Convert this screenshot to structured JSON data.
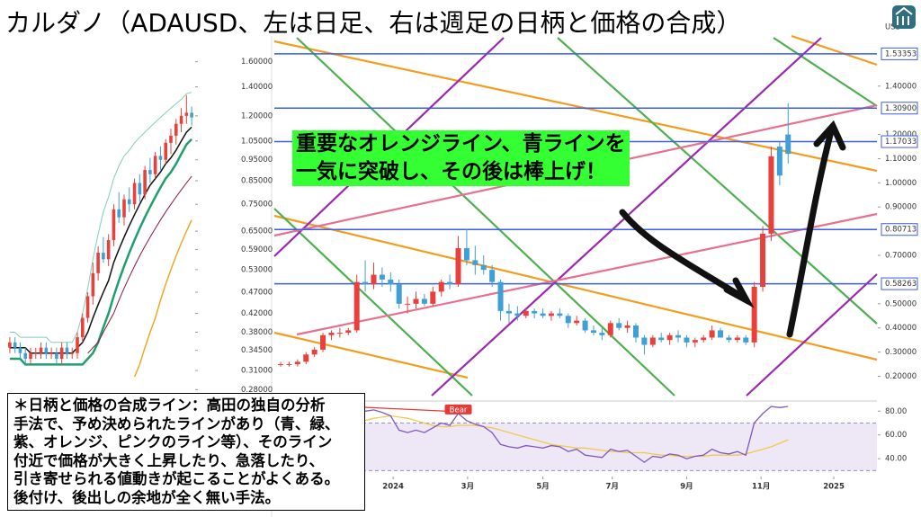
{
  "title": "カルダノ（ADAUSD、左は日足、右は週足の日柄と価格の合成）",
  "callout": [
    "重要なオレンジライン、青ラインを",
    "一気に突破し、その後は棒上げ！"
  ],
  "note": [
    "＊日柄と価格の合成ライン：高田の独自の分析",
    "手法で、予め決められたラインがあり（青、緑、",
    "紫、オレンジ、ピンクのライン等）、そのライン",
    "付近で価格が大きく上昇したり、急落したり、",
    "引き寄せられる値動きが起こることがよくある。",
    "後付け、後出しの余地が全く無い手法。"
  ],
  "chart_data": [
    {
      "type": "candlestick",
      "log_y": true,
      "up_color": "#e8413b",
      "down_color": "#3f9fd6",
      "xlim": [
        -0.5,
        35.5
      ],
      "ylim": [
        0.27,
        1.8
      ],
      "yticks": [
        {
          "value": 1.6,
          "label": "1.60000"
        },
        {
          "value": 1.4,
          "label": "1.40000"
        },
        {
          "value": 1.2,
          "label": "1.20000"
        },
        {
          "value": 1.05,
          "label": "1.05000"
        },
        {
          "value": 0.95,
          "label": "0.95000"
        },
        {
          "value": 0.85,
          "label": "0.85000"
        },
        {
          "value": 0.75,
          "label": "0.75000"
        },
        {
          "value": 0.65,
          "label": "0.65000"
        },
        {
          "value": 0.59,
          "label": "0.59000"
        },
        {
          "value": 0.53,
          "label": "0.53000"
        },
        {
          "value": 0.47,
          "label": "0.47000"
        },
        {
          "value": 0.42,
          "label": "0.42000"
        },
        {
          "value": 0.38,
          "label": "0.38000"
        },
        {
          "value": 0.345,
          "label": "0.34500"
        },
        {
          "value": 0.31,
          "label": "0.31000"
        },
        {
          "value": 0.28,
          "label": "0.28000"
        }
      ],
      "ohlc": [
        [
          0.35,
          0.37,
          0.34,
          0.36
        ],
        [
          0.36,
          0.37,
          0.34,
          0.35
        ],
        [
          0.35,
          0.36,
          0.33,
          0.34
        ],
        [
          0.34,
          0.35,
          0.32,
          0.33
        ],
        [
          0.33,
          0.35,
          0.32,
          0.34
        ],
        [
          0.34,
          0.35,
          0.33,
          0.34
        ],
        [
          0.34,
          0.36,
          0.33,
          0.35
        ],
        [
          0.35,
          0.36,
          0.33,
          0.34
        ],
        [
          0.34,
          0.35,
          0.33,
          0.34
        ],
        [
          0.34,
          0.35,
          0.32,
          0.33
        ],
        [
          0.33,
          0.36,
          0.32,
          0.35
        ],
        [
          0.35,
          0.36,
          0.33,
          0.34
        ],
        [
          0.34,
          0.35,
          0.33,
          0.34
        ],
        [
          0.34,
          0.38,
          0.33,
          0.37
        ],
        [
          0.37,
          0.42,
          0.36,
          0.41
        ],
        [
          0.41,
          0.47,
          0.4,
          0.46
        ],
        [
          0.46,
          0.55,
          0.44,
          0.52
        ],
        [
          0.52,
          0.6,
          0.5,
          0.58
        ],
        [
          0.58,
          0.63,
          0.55,
          0.56
        ],
        [
          0.56,
          0.64,
          0.54,
          0.62
        ],
        [
          0.62,
          0.75,
          0.6,
          0.73
        ],
        [
          0.73,
          0.8,
          0.68,
          0.7
        ],
        [
          0.7,
          0.79,
          0.67,
          0.77
        ],
        [
          0.77,
          0.82,
          0.72,
          0.75
        ],
        [
          0.75,
          0.86,
          0.73,
          0.84
        ],
        [
          0.84,
          0.88,
          0.76,
          0.79
        ],
        [
          0.79,
          0.92,
          0.77,
          0.9
        ],
        [
          0.9,
          0.96,
          0.84,
          0.88
        ],
        [
          0.88,
          0.99,
          0.86,
          0.97
        ],
        [
          0.97,
          1.02,
          0.9,
          0.95
        ],
        [
          0.95,
          1.06,
          0.93,
          1.04
        ],
        [
          1.04,
          1.12,
          0.98,
          1.08
        ],
        [
          1.08,
          1.18,
          1.03,
          1.15
        ],
        [
          1.15,
          1.25,
          1.1,
          1.2
        ],
        [
          1.2,
          1.34,
          1.15,
          1.22
        ],
        [
          1.22,
          1.26,
          1.14,
          1.19
        ]
      ],
      "lines": [
        {
          "color": "#7fd0b8",
          "width": 1,
          "values": [
            0.38,
            0.38,
            0.37,
            0.37,
            0.37,
            0.37,
            0.37,
            0.37,
            0.36,
            0.36,
            0.36,
            0.36,
            0.36,
            0.38,
            0.42,
            0.48,
            0.56,
            0.64,
            0.72,
            0.78,
            0.86,
            0.92,
            0.97,
            1.0,
            1.04,
            1.07,
            1.1,
            1.13,
            1.16,
            1.19,
            1.22,
            1.25,
            1.28,
            1.31,
            1.35,
            1.36
          ]
        },
        {
          "color": "#111111",
          "width": 1.5,
          "values": [
            0.35,
            0.35,
            0.35,
            0.35,
            0.34,
            0.34,
            0.34,
            0.34,
            0.34,
            0.34,
            0.34,
            0.34,
            0.34,
            0.35,
            0.36,
            0.38,
            0.41,
            0.44,
            0.47,
            0.5,
            0.55,
            0.59,
            0.63,
            0.67,
            0.71,
            0.75,
            0.79,
            0.83,
            0.86,
            0.89,
            0.93,
            0.96,
            1.0,
            1.05,
            1.1,
            1.13
          ]
        },
        {
          "color": "#1e9f6e",
          "width": 2.5,
          "values": [
            0.33,
            0.33,
            0.33,
            0.32,
            0.32,
            0.32,
            0.32,
            0.32,
            0.32,
            0.32,
            0.32,
            0.32,
            0.32,
            0.32,
            0.32,
            0.33,
            0.34,
            0.36,
            0.39,
            0.42,
            0.46,
            0.5,
            0.54,
            0.58,
            0.62,
            0.66,
            0.7,
            0.74,
            0.78,
            0.82,
            0.86,
            0.89,
            0.93,
            0.98,
            1.03,
            1.06
          ]
        },
        {
          "color": "#8b1a3a",
          "width": 1,
          "values": [
            null,
            null,
            null,
            null,
            null,
            null,
            null,
            null,
            null,
            null,
            null,
            null,
            null,
            null,
            null,
            0.34,
            0.35,
            0.36,
            0.38,
            0.4,
            0.42,
            0.45,
            0.48,
            0.51,
            0.54,
            0.57,
            0.6,
            0.63,
            0.66,
            0.69,
            0.72,
            0.75,
            0.78,
            0.81,
            0.84,
            0.87
          ]
        },
        {
          "color": "#f5a623",
          "width": 1.5,
          "values": [
            null,
            null,
            null,
            null,
            null,
            null,
            null,
            null,
            null,
            null,
            null,
            null,
            null,
            null,
            null,
            null,
            null,
            null,
            null,
            null,
            null,
            null,
            null,
            null,
            0.3,
            0.32,
            0.35,
            0.38,
            0.41,
            0.45,
            0.49,
            0.53,
            0.57,
            0.61,
            0.65,
            0.69
          ]
        }
      ]
    },
    {
      "type": "candlestick",
      "currency": "USD",
      "up_color": "#e8413b",
      "down_color": "#3f9fd6",
      "xlim": [
        -0.75,
        70.5
      ],
      "ylim": [
        0.12,
        1.6
      ],
      "yticks": [
        {
          "value": 1.4,
          "label": "1.40000"
        },
        {
          "value": 1.2,
          "label": "1.20000"
        },
        {
          "value": 1.1,
          "label": "1.10000"
        },
        {
          "value": 1.0,
          "label": "1.00000"
        },
        {
          "value": 0.9,
          "label": "0.90000"
        },
        {
          "value": 0.7,
          "label": "0.70000"
        },
        {
          "value": 0.5,
          "label": "0.50000"
        },
        {
          "value": 0.4,
          "label": "0.40000"
        },
        {
          "value": 0.3,
          "label": "0.30000"
        },
        {
          "value": 0.2,
          "label": "0.20000"
        }
      ],
      "xticks": [
        {
          "value": 13.3,
          "label": "2024"
        },
        {
          "value": 22.1,
          "label": "3月"
        },
        {
          "value": 31,
          "label": "5月"
        },
        {
          "value": 39.2,
          "label": "7月"
        },
        {
          "value": 48,
          "label": "9月"
        },
        {
          "value": 56.8,
          "label": "11月"
        },
        {
          "value": 65.4,
          "label": "2025"
        }
      ],
      "hline_color": "#3b5ee8",
      "hlines": [
        {
          "value": 1.53353,
          "label": "1.53353"
        },
        {
          "value": 1.309,
          "label": "1.30900"
        },
        {
          "value": 1.17033,
          "label": "1.17033"
        },
        {
          "value": 0.80713,
          "label": "0.80713"
        },
        {
          "value": 0.58263,
          "label": "0.58263"
        }
      ],
      "ohlc": [
        [
          0.25,
          0.26,
          0.24,
          0.25
        ],
        [
          0.25,
          0.26,
          0.24,
          0.25
        ],
        [
          0.25,
          0.27,
          0.24,
          0.26
        ],
        [
          0.26,
          0.3,
          0.25,
          0.29
        ],
        [
          0.29,
          0.32,
          0.28,
          0.31
        ],
        [
          0.31,
          0.38,
          0.3,
          0.37
        ],
        [
          0.37,
          0.39,
          0.35,
          0.38
        ],
        [
          0.38,
          0.4,
          0.36,
          0.38
        ],
        [
          0.38,
          0.4,
          0.37,
          0.39
        ],
        [
          0.39,
          0.62,
          0.38,
          0.59
        ],
        [
          0.59,
          0.68,
          0.55,
          0.58
        ],
        [
          0.58,
          0.67,
          0.56,
          0.62
        ],
        [
          0.62,
          0.65,
          0.57,
          0.6
        ],
        [
          0.6,
          0.63,
          0.55,
          0.58
        ],
        [
          0.58,
          0.6,
          0.48,
          0.5
        ],
        [
          0.5,
          0.53,
          0.46,
          0.5
        ],
        [
          0.5,
          0.55,
          0.48,
          0.52
        ],
        [
          0.52,
          0.54,
          0.49,
          0.5
        ],
        [
          0.5,
          0.57,
          0.49,
          0.55
        ],
        [
          0.55,
          0.6,
          0.53,
          0.59
        ],
        [
          0.59,
          0.62,
          0.56,
          0.58
        ],
        [
          0.58,
          0.78,
          0.57,
          0.73
        ],
        [
          0.73,
          0.81,
          0.66,
          0.68
        ],
        [
          0.68,
          0.74,
          0.62,
          0.66
        ],
        [
          0.66,
          0.7,
          0.62,
          0.64
        ],
        [
          0.64,
          0.66,
          0.57,
          0.59
        ],
        [
          0.59,
          0.6,
          0.43,
          0.47
        ],
        [
          0.47,
          0.5,
          0.42,
          0.46
        ],
        [
          0.46,
          0.49,
          0.43,
          0.45
        ],
        [
          0.45,
          0.48,
          0.44,
          0.47
        ],
        [
          0.47,
          0.48,
          0.44,
          0.46
        ],
        [
          0.46,
          0.48,
          0.44,
          0.45
        ],
        [
          0.45,
          0.47,
          0.43,
          0.46
        ],
        [
          0.46,
          0.48,
          0.44,
          0.45
        ],
        [
          0.45,
          0.46,
          0.4,
          0.42
        ],
        [
          0.42,
          0.45,
          0.41,
          0.43
        ],
        [
          0.43,
          0.44,
          0.38,
          0.39
        ],
        [
          0.39,
          0.41,
          0.37,
          0.38
        ],
        [
          0.38,
          0.4,
          0.35,
          0.37
        ],
        [
          0.37,
          0.43,
          0.36,
          0.42
        ],
        [
          0.42,
          0.44,
          0.39,
          0.4
        ],
        [
          0.4,
          0.43,
          0.38,
          0.41
        ],
        [
          0.41,
          0.42,
          0.34,
          0.36
        ],
        [
          0.36,
          0.37,
          0.29,
          0.33
        ],
        [
          0.33,
          0.37,
          0.32,
          0.36
        ],
        [
          0.36,
          0.38,
          0.34,
          0.35
        ],
        [
          0.35,
          0.38,
          0.33,
          0.37
        ],
        [
          0.37,
          0.39,
          0.34,
          0.36
        ],
        [
          0.36,
          0.37,
          0.32,
          0.34
        ],
        [
          0.34,
          0.36,
          0.32,
          0.35
        ],
        [
          0.35,
          0.37,
          0.34,
          0.36
        ],
        [
          0.36,
          0.41,
          0.35,
          0.39
        ],
        [
          0.39,
          0.4,
          0.36,
          0.36
        ],
        [
          0.36,
          0.37,
          0.34,
          0.35
        ],
        [
          0.35,
          0.37,
          0.34,
          0.36
        ],
        [
          0.36,
          0.37,
          0.33,
          0.34
        ],
        [
          0.34,
          0.59,
          0.32,
          0.57
        ],
        [
          0.57,
          0.82,
          0.55,
          0.79
        ],
        [
          0.79,
          1.15,
          0.76,
          1.11
        ],
        [
          1.15,
          1.17,
          0.99,
          1.03
        ],
        [
          1.2,
          1.33,
          1.08,
          1.12
        ]
      ],
      "rsi": {
        "ylim": [
          25,
          87
        ],
        "band": [
          30,
          70
        ],
        "band_color": "#ede7f6",
        "label": "Bear",
        "yticks": [
          {
            "value": 80,
            "label": "80.00"
          },
          {
            "value": 60,
            "label": "60.00"
          },
          {
            "value": 40,
            "label": "40.00"
          }
        ],
        "color": "#7e57c2",
        "ma_color": "#f2c94c",
        "values": [
          52,
          50,
          53,
          58,
          62,
          70,
          72,
          72,
          73,
          82,
          80,
          81,
          79,
          76,
          64,
          62,
          64,
          62,
          66,
          70,
          68,
          78,
          72,
          69,
          67,
          62,
          52,
          50,
          49,
          51,
          50,
          49,
          51,
          50,
          46,
          48,
          43,
          42,
          41,
          48,
          46,
          47,
          42,
          37,
          42,
          41,
          44,
          43,
          40,
          42,
          43,
          48,
          45,
          44,
          46,
          43,
          70,
          78,
          84,
          83,
          84
        ],
        "ma": [
          null,
          null,
          null,
          null,
          null,
          58,
          62,
          65,
          68,
          70,
          72,
          74,
          75,
          76,
          75,
          74,
          72,
          70,
          68,
          67,
          67,
          68,
          68,
          68,
          67,
          66,
          64,
          62,
          60,
          58,
          56,
          54,
          52,
          51,
          50,
          49,
          49,
          48,
          47,
          46,
          46,
          45,
          45,
          45,
          44,
          43,
          43,
          42,
          42,
          42,
          42,
          43,
          43,
          43,
          43,
          44,
          46,
          48,
          50,
          53,
          56
        ]
      }
    }
  ]
}
